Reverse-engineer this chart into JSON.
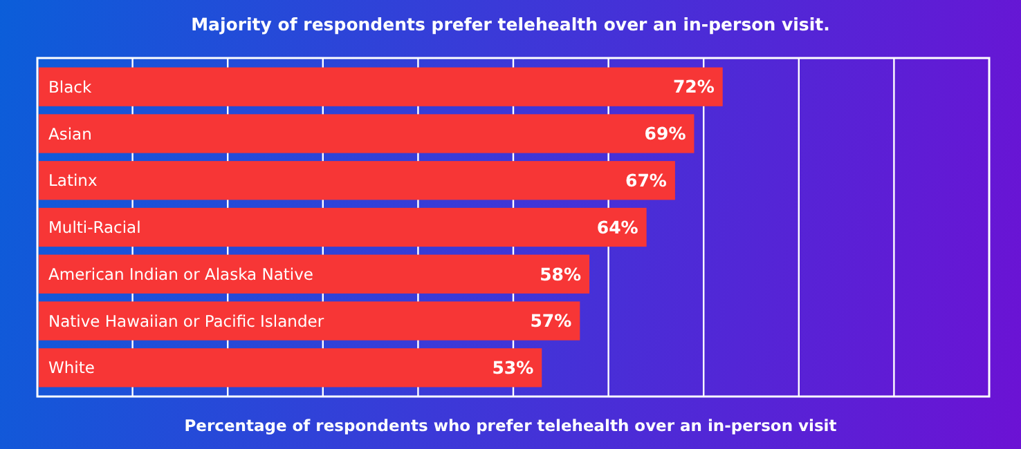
{
  "chart_data": {
    "type": "bar",
    "orientation": "horizontal",
    "title": "Majority of respondents prefer telehealth over an in-person visit.",
    "xlabel": "Percentage of respondents who prefer telehealth over an in-person visit",
    "categories": [
      "Black",
      "Asian",
      "Latinx",
      "Multi-Racial",
      "American Indian or Alaska Native",
      "Native Hawaiian or Pacific Islander",
      "White"
    ],
    "values": [
      72,
      69,
      67,
      64,
      58,
      57,
      53
    ],
    "value_labels": [
      "72%",
      "69%",
      "67%",
      "64%",
      "58%",
      "57%",
      "53%"
    ],
    "color": "#f73636",
    "xlim": [
      0,
      100
    ],
    "xticks": [
      {
        "value": 10,
        "label": null
      },
      {
        "value": 20,
        "label": null
      },
      {
        "value": 30,
        "label": null
      },
      {
        "value": 40,
        "label": null
      },
      {
        "value": 50,
        "label": null
      },
      {
        "value": 60,
        "label": null
      },
      {
        "value": 70,
        "label": null
      },
      {
        "value": 80,
        "label": null
      },
      {
        "value": 90,
        "label": null
      }
    ],
    "grid": "x"
  }
}
